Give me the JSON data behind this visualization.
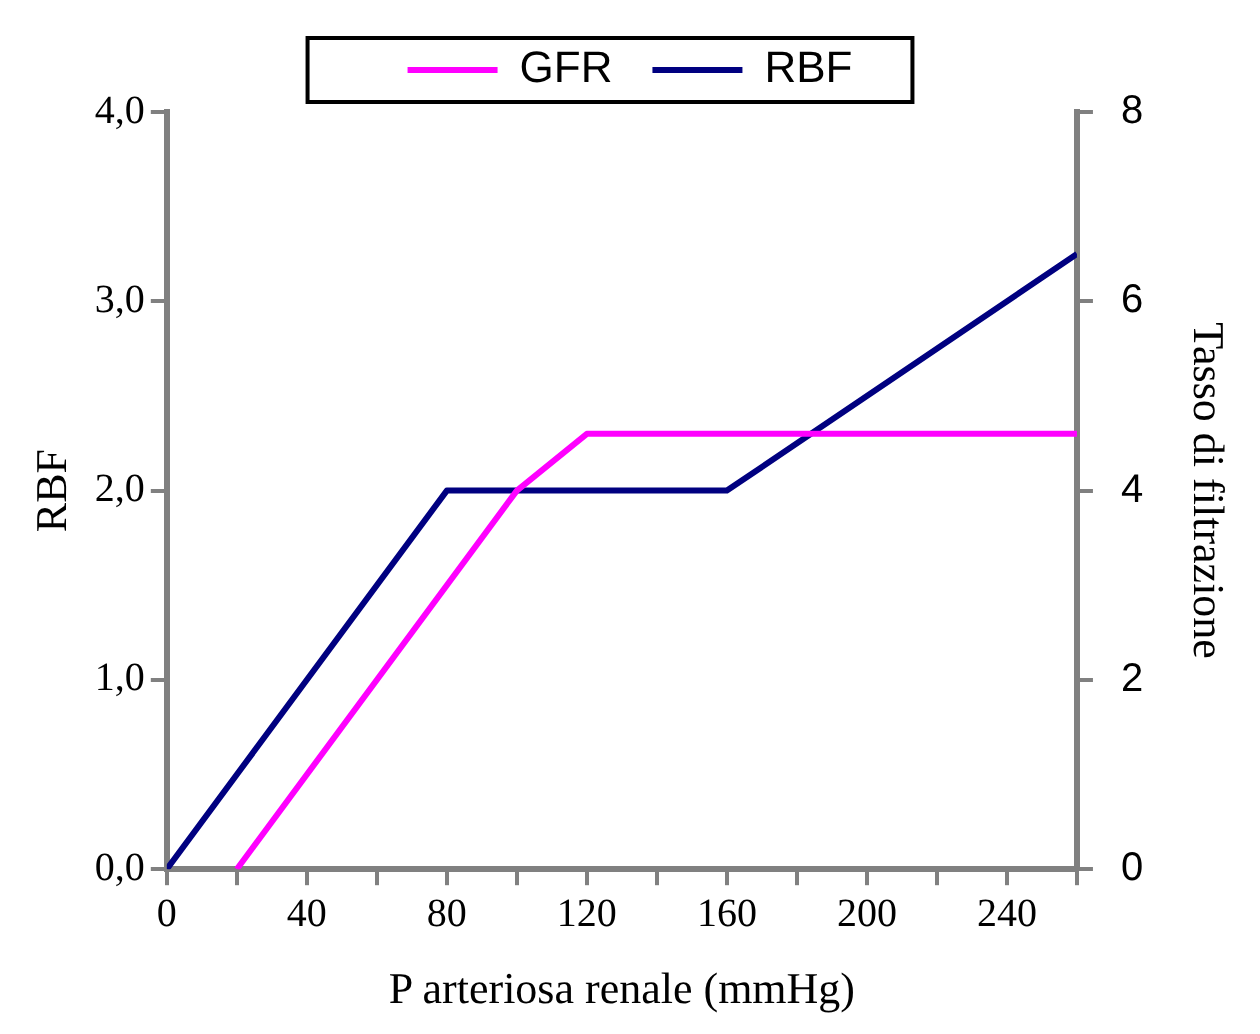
{
  "chart_data": {
    "type": "line",
    "xlabel": "P arteriosa renale (mmHg)",
    "ylabel": "RBF",
    "y2label": "Tasso di filtrazione",
    "xlim": [
      0,
      260
    ],
    "xticks": [
      0,
      {
        "value": 20,
        "label": null
      },
      40,
      {
        "value": 60,
        "label": null
      },
      80,
      {
        "value": 100,
        "label": null
      },
      120,
      {
        "value": 140,
        "label": null
      },
      160,
      {
        "value": 180,
        "label": null
      },
      200,
      {
        "value": 220,
        "label": null
      },
      240,
      {
        "value": 260,
        "label": null
      }
    ],
    "ylim": [
      0,
      4
    ],
    "yticks": [
      {
        "value": 0,
        "label": "0,0"
      },
      {
        "value": 1,
        "label": "1,0"
      },
      {
        "value": 2,
        "label": "2,0"
      },
      {
        "value": 3,
        "label": "3,0"
      },
      {
        "value": 4,
        "label": "4,0"
      }
    ],
    "y2lim": [
      0,
      8
    ],
    "y2ticks": [
      0,
      2,
      4,
      6,
      8
    ],
    "legend": "top",
    "grid": false,
    "marker": "none",
    "series": [
      {
        "name": "GFR",
        "color": "#ff00ff",
        "axis": "y2",
        "x": [
          20,
          100,
          120,
          260
        ],
        "values": [
          0,
          4,
          4.6,
          4.6
        ]
      },
      {
        "name": "RBF",
        "color": "#000080",
        "x": [
          0,
          80,
          160,
          260
        ],
        "values": [
          0,
          2,
          2,
          3.25
        ]
      }
    ]
  }
}
